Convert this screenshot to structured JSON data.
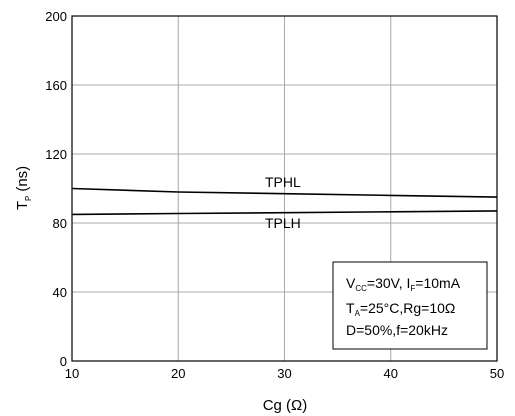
{
  "chart_data": {
    "type": "line",
    "title": "",
    "xlabel": "Cg (Ω)",
    "ylabel_main": "T",
    "ylabel_sub": "P",
    "ylabel_unit": "(ns)",
    "xlim": [
      10,
      50
    ],
    "ylim": [
      0,
      200
    ],
    "x_ticks": [
      10,
      20,
      30,
      40,
      50
    ],
    "y_ticks": [
      0,
      40,
      80,
      120,
      160,
      200
    ],
    "grid": true,
    "series": [
      {
        "name": "TPHL",
        "x": [
          10,
          20,
          30,
          40,
          50
        ],
        "y": [
          100,
          98,
          97,
          96,
          95
        ]
      },
      {
        "name": "TPLH",
        "x": [
          10,
          20,
          30,
          40,
          50
        ],
        "y": [
          85,
          85.5,
          86,
          86.5,
          87
        ]
      }
    ],
    "annotation": {
      "line1": {
        "a": "V",
        "a_sub": "CC",
        "b": "=30V, I",
        "b_sub": "F",
        "c": "=10mA"
      },
      "line2": {
        "a": "T",
        "a_sub": "A",
        "b": "=25°C,Rg=10Ω"
      },
      "line3": "D=50%,f=20kHz"
    }
  }
}
